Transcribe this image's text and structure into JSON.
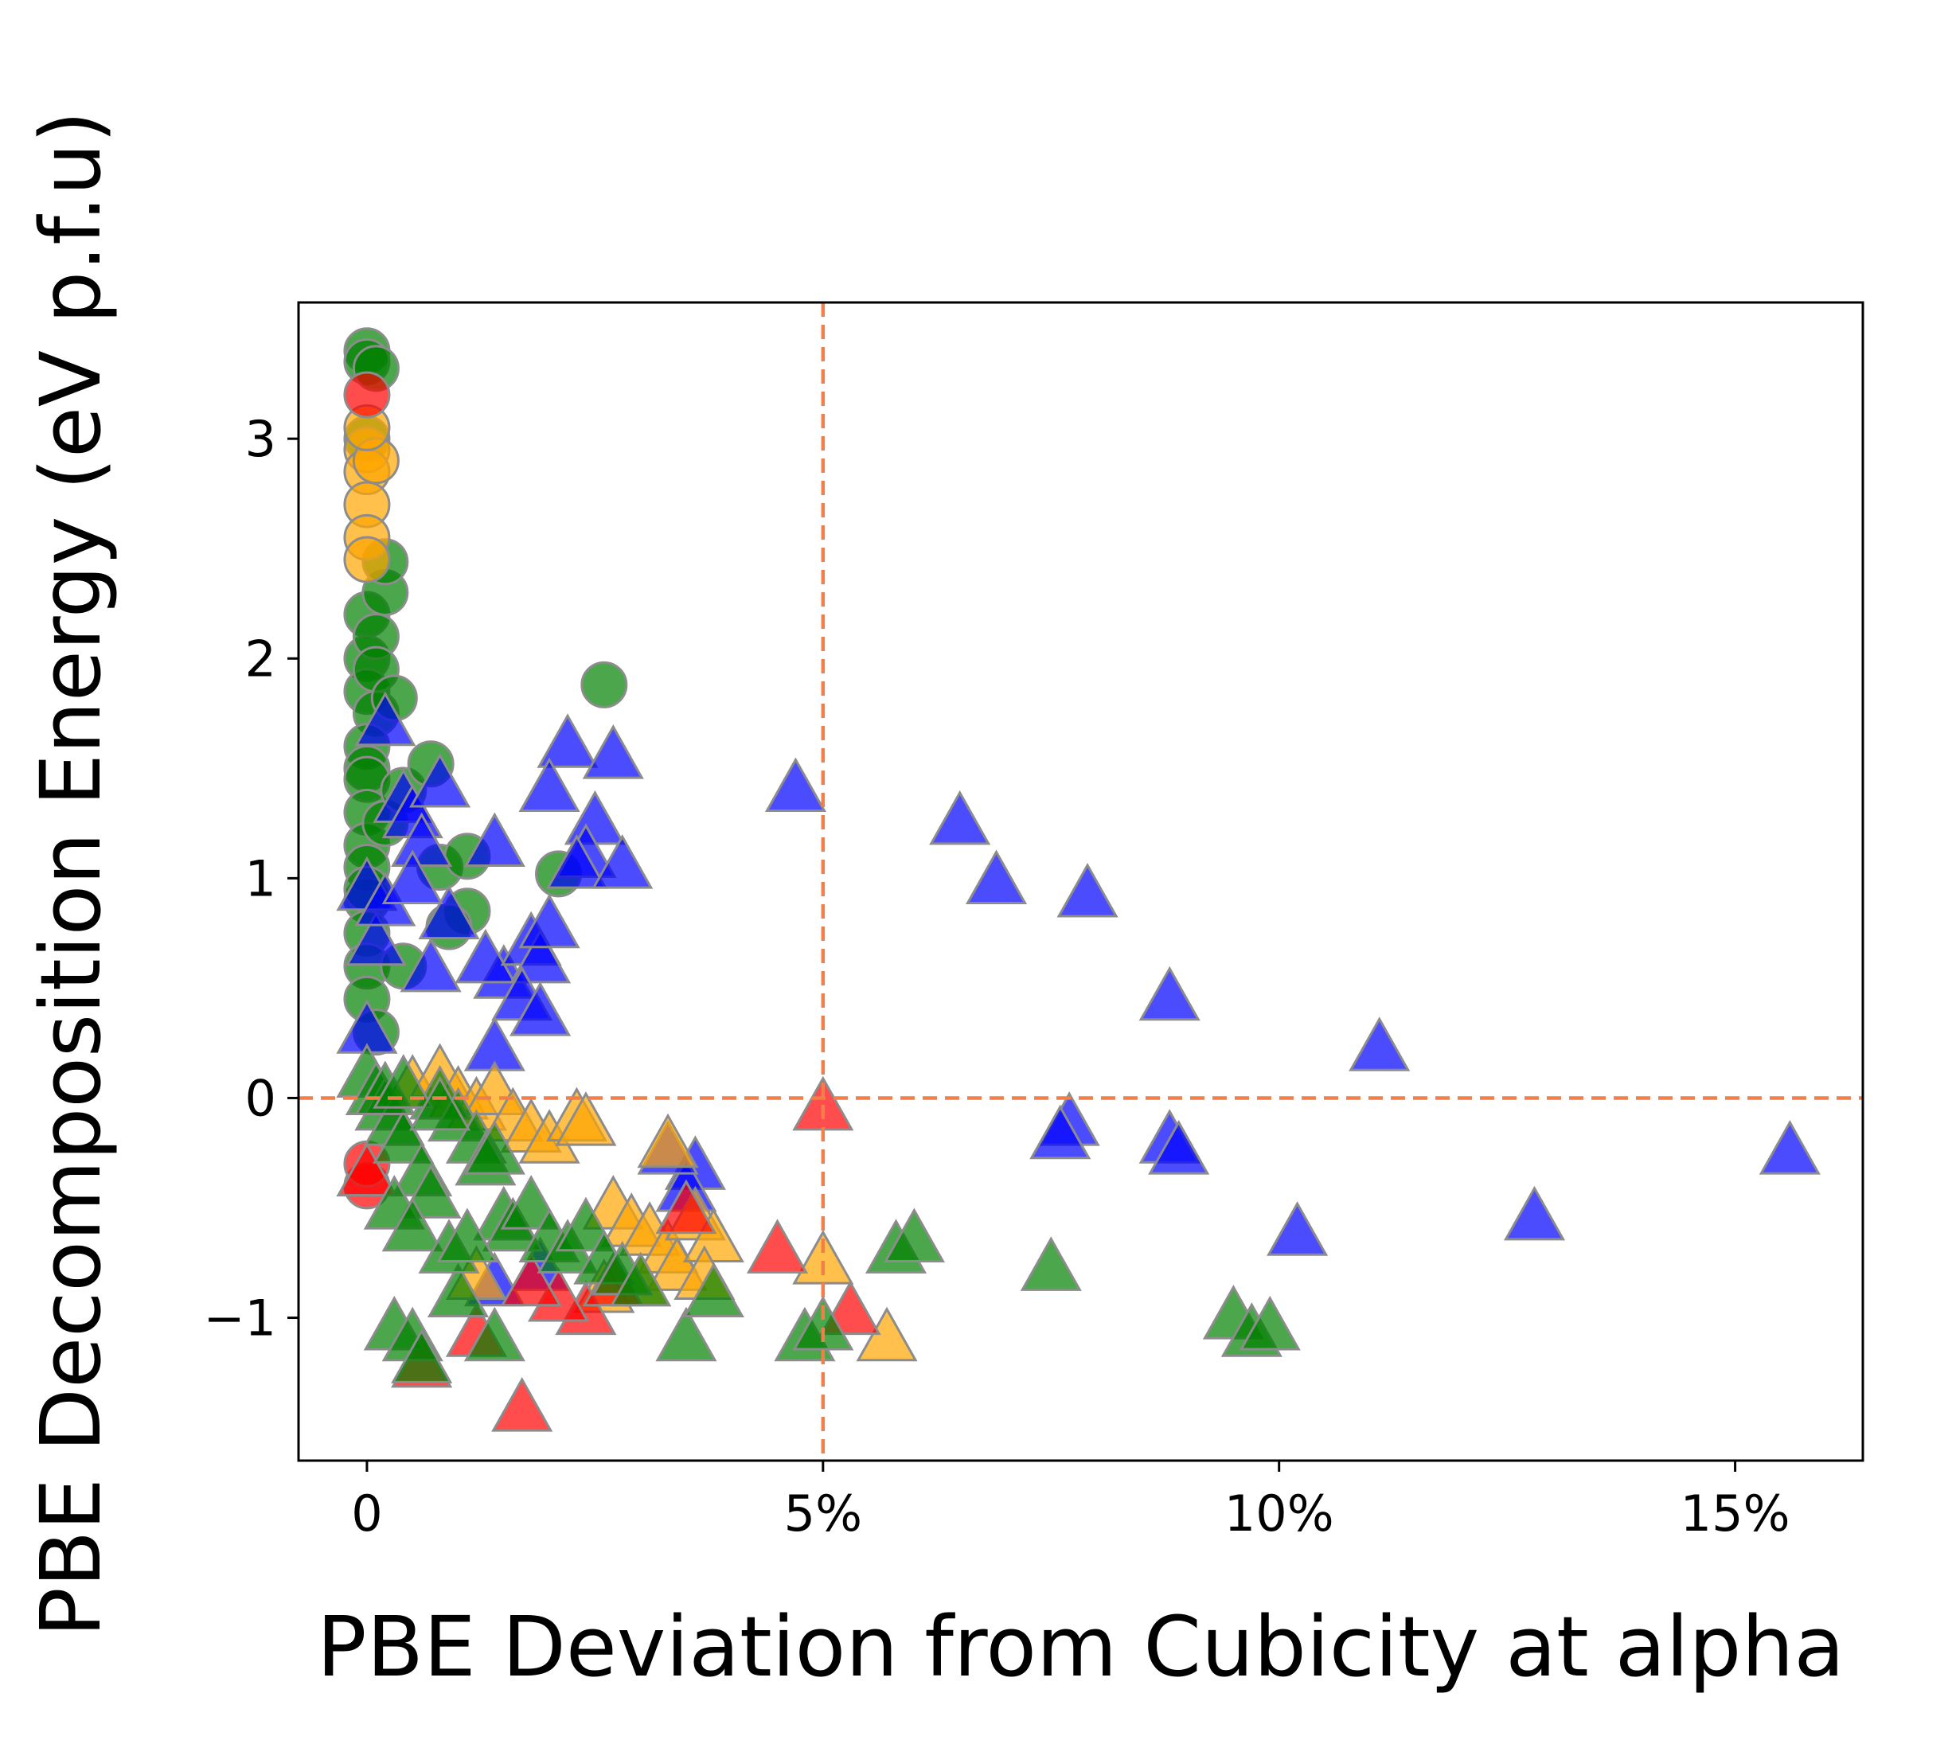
{
  "chart_data": {
    "type": "scatter",
    "title": "",
    "xlabel": "PBE Deviation from Cubicity at alpha",
    "ylabel": "PBE Decomposition Energy (eV p.f.u)",
    "xlim": [
      -0.0075,
      0.164
    ],
    "ylim": [
      -1.65,
      3.62
    ],
    "x_ticks": [
      {
        "value": 0,
        "label": "0"
      },
      {
        "value": 0.05,
        "label": "5%"
      },
      {
        "value": 0.1,
        "label": "10%"
      },
      {
        "value": 0.15,
        "label": "15%"
      }
    ],
    "y_ticks": [
      {
        "value": -1,
        "label": "−1"
      },
      {
        "value": 0,
        "label": "0"
      },
      {
        "value": 1,
        "label": "1"
      },
      {
        "value": 2,
        "label": "2"
      },
      {
        "value": 3,
        "label": "3"
      }
    ],
    "reference_lines": [
      {
        "axis": "x",
        "value": 0.05,
        "style": "dashed",
        "color": "#F07F4A"
      },
      {
        "axis": "y",
        "value": 0,
        "style": "dashed",
        "color": "#F07F4A"
      }
    ],
    "grid": false,
    "legend": "none",
    "marker_edge_color": "#8C8C8C",
    "series": [
      {
        "color": "#008000",
        "marker": "circle",
        "points": [
          [
            0,
            3.4
          ],
          [
            0,
            3.35
          ],
          [
            0.001,
            3.32
          ],
          [
            0,
            3.0
          ],
          [
            0,
            2.2
          ],
          [
            0,
            2.0
          ],
          [
            0,
            1.85
          ],
          [
            0.001,
            1.75
          ],
          [
            0,
            1.6
          ],
          [
            0,
            1.5
          ],
          [
            0,
            1.45
          ],
          [
            0,
            1.3
          ],
          [
            0,
            1.15
          ],
          [
            0,
            1.05
          ],
          [
            0,
            0.9
          ],
          [
            0,
            0.75
          ],
          [
            0,
            0.6
          ],
          [
            0,
            0.45
          ],
          [
            0.001,
            0.3
          ],
          [
            0.001,
            2.1
          ],
          [
            0.001,
            1.95
          ],
          [
            0.002,
            2.3
          ],
          [
            0.002,
            2.44
          ],
          [
            0.003,
            1.82
          ],
          [
            0.002,
            1.25
          ],
          [
            0.004,
            1.4
          ],
          [
            0.007,
            1.52
          ],
          [
            0.008,
            1.05
          ],
          [
            0.011,
            1.1
          ],
          [
            0.011,
            0.85
          ],
          [
            0.009,
            0.78
          ],
          [
            0.004,
            0.6
          ],
          [
            0.021,
            1.02
          ],
          [
            0.026,
            1.88
          ],
          [
            0,
            0.95
          ]
        ]
      },
      {
        "color": "#FFA500",
        "marker": "circle",
        "points": [
          [
            0,
            2.95
          ],
          [
            0,
            2.85
          ],
          [
            0,
            2.7
          ],
          [
            0,
            2.55
          ],
          [
            0.001,
            2.9
          ],
          [
            0,
            2.45
          ],
          [
            0,
            3.05
          ]
        ]
      },
      {
        "color": "#FF0000",
        "marker": "circle",
        "points": [
          [
            0,
            3.2
          ],
          [
            0,
            -0.4
          ],
          [
            0,
            -0.3
          ]
        ]
      },
      {
        "color": "#0000FF",
        "marker": "triangle",
        "points": [
          [
            0.002,
            1.7
          ],
          [
            0.004,
            1.35
          ],
          [
            0.005,
            1.28
          ],
          [
            0.006,
            1.15
          ],
          [
            0.008,
            1.42
          ],
          [
            0.009,
            0.82
          ],
          [
            0.014,
            1.15
          ],
          [
            0.015,
            0.55
          ],
          [
            0.013,
            0.62
          ],
          [
            0.018,
            0.7
          ],
          [
            0.019,
            0.62
          ],
          [
            0.02,
            0.78
          ],
          [
            0.017,
            0.45
          ],
          [
            0.019,
            0.38
          ],
          [
            0.014,
            0.22
          ],
          [
            0.007,
            0.58
          ],
          [
            0.022,
            1.6
          ],
          [
            0.02,
            1.4
          ],
          [
            0.027,
            1.55
          ],
          [
            0.025,
            1.25
          ],
          [
            0.024,
            1.1
          ],
          [
            0.023,
            1.05
          ],
          [
            0.028,
            1.05
          ],
          [
            0.047,
            1.4
          ],
          [
            0.065,
            1.25
          ],
          [
            0.069,
            0.98
          ],
          [
            0.079,
            0.92
          ],
          [
            0.088,
            0.45
          ],
          [
            0.111,
            0.22
          ],
          [
            0.077,
            -0.12
          ],
          [
            0.076,
            -0.18
          ],
          [
            0.088,
            -0.2
          ],
          [
            0.089,
            -0.25
          ],
          [
            0.102,
            -0.62
          ],
          [
            0.128,
            -0.55
          ],
          [
            0.156,
            -0.25
          ],
          [
            0.036,
            -0.32
          ],
          [
            0.035,
            -0.42
          ],
          [
            0.033,
            -0.25
          ],
          [
            0,
            0.95
          ],
          [
            0.001,
            0.7
          ],
          [
            0,
            0.3
          ],
          [
            0.002,
            0.88
          ],
          [
            0.005,
            0.98
          ],
          [
            0.014,
            -0.85
          ],
          [
            0.019,
            -0.78
          ]
        ]
      },
      {
        "color": "#FFA500",
        "marker": "triangle",
        "points": [
          [
            0.005,
            0.05
          ],
          [
            0.008,
            0.1
          ],
          [
            0.01,
            0.0
          ],
          [
            0.012,
            -0.05
          ],
          [
            0.014,
            0.02
          ],
          [
            0.016,
            -0.1
          ],
          [
            0.018,
            -0.15
          ],
          [
            0.02,
            -0.2
          ],
          [
            0.023,
            -0.1
          ],
          [
            0.024,
            -0.12
          ],
          [
            0.027,
            -0.5
          ],
          [
            0.029,
            -0.58
          ],
          [
            0.031,
            -0.62
          ],
          [
            0.033,
            -0.7
          ],
          [
            0.034,
            -0.78
          ],
          [
            0.036,
            -0.55
          ],
          [
            0.038,
            -0.65
          ],
          [
            0.037,
            -0.82
          ],
          [
            0.05,
            -0.75
          ],
          [
            0.057,
            -1.1
          ],
          [
            0.033,
            -0.22
          ],
          [
            0.012,
            -0.82
          ],
          [
            0.026,
            -0.88
          ],
          [
            0.03,
            -0.85
          ]
        ]
      },
      {
        "color": "#FF0000",
        "marker": "triangle",
        "points": [
          [
            0.05,
            -0.05
          ],
          [
            0.045,
            -0.7
          ],
          [
            0.053,
            -0.98
          ],
          [
            0.017,
            -1.42
          ],
          [
            0.024,
            -0.98
          ],
          [
            0.021,
            -0.92
          ],
          [
            0.018,
            -0.85
          ],
          [
            0.012,
            -1.08
          ],
          [
            0.006,
            -1.22
          ],
          [
            0.027,
            -0.85
          ],
          [
            0.035,
            -0.52
          ],
          [
            0,
            -0.35
          ]
        ]
      },
      {
        "color": "#008000",
        "marker": "triangle",
        "points": [
          [
            0,
            0.1
          ],
          [
            0.001,
            0.02
          ],
          [
            0.002,
            -0.05
          ],
          [
            0.003,
            -0.12
          ],
          [
            0.004,
            -0.2
          ],
          [
            0.006,
            -0.35
          ],
          [
            0.007,
            -0.45
          ],
          [
            0.008,
            0.0
          ],
          [
            0.01,
            -0.1
          ],
          [
            0.012,
            -0.2
          ],
          [
            0.013,
            -0.3
          ],
          [
            0.014,
            -0.25
          ],
          [
            0.015,
            -0.55
          ],
          [
            0.016,
            -0.6
          ],
          [
            0.018,
            -0.5
          ],
          [
            0.02,
            -0.65
          ],
          [
            0.022,
            -0.7
          ],
          [
            0.024,
            -0.6
          ],
          [
            0.026,
            -0.75
          ],
          [
            0.028,
            -0.8
          ],
          [
            0.03,
            -0.85
          ],
          [
            0.003,
            -1.05
          ],
          [
            0.005,
            -1.1
          ],
          [
            0.006,
            -1.2
          ],
          [
            0.01,
            -0.9
          ],
          [
            0.014,
            -1.1
          ],
          [
            0.035,
            -1.1
          ],
          [
            0.038,
            -0.9
          ],
          [
            0.048,
            -1.1
          ],
          [
            0.05,
            -1.05
          ],
          [
            0.058,
            -0.7
          ],
          [
            0.06,
            -0.65
          ],
          [
            0.075,
            -0.78
          ],
          [
            0.095,
            -1.0
          ],
          [
            0.097,
            -1.08
          ],
          [
            0.099,
            -1.05
          ],
          [
            0.003,
            -0.5
          ],
          [
            0.005,
            -0.6
          ],
          [
            0.002,
            0.02
          ],
          [
            0.004,
            0.05
          ],
          [
            0.008,
            -0.05
          ],
          [
            0.009,
            -0.7
          ],
          [
            0.011,
            -0.65
          ]
        ]
      }
    ]
  }
}
